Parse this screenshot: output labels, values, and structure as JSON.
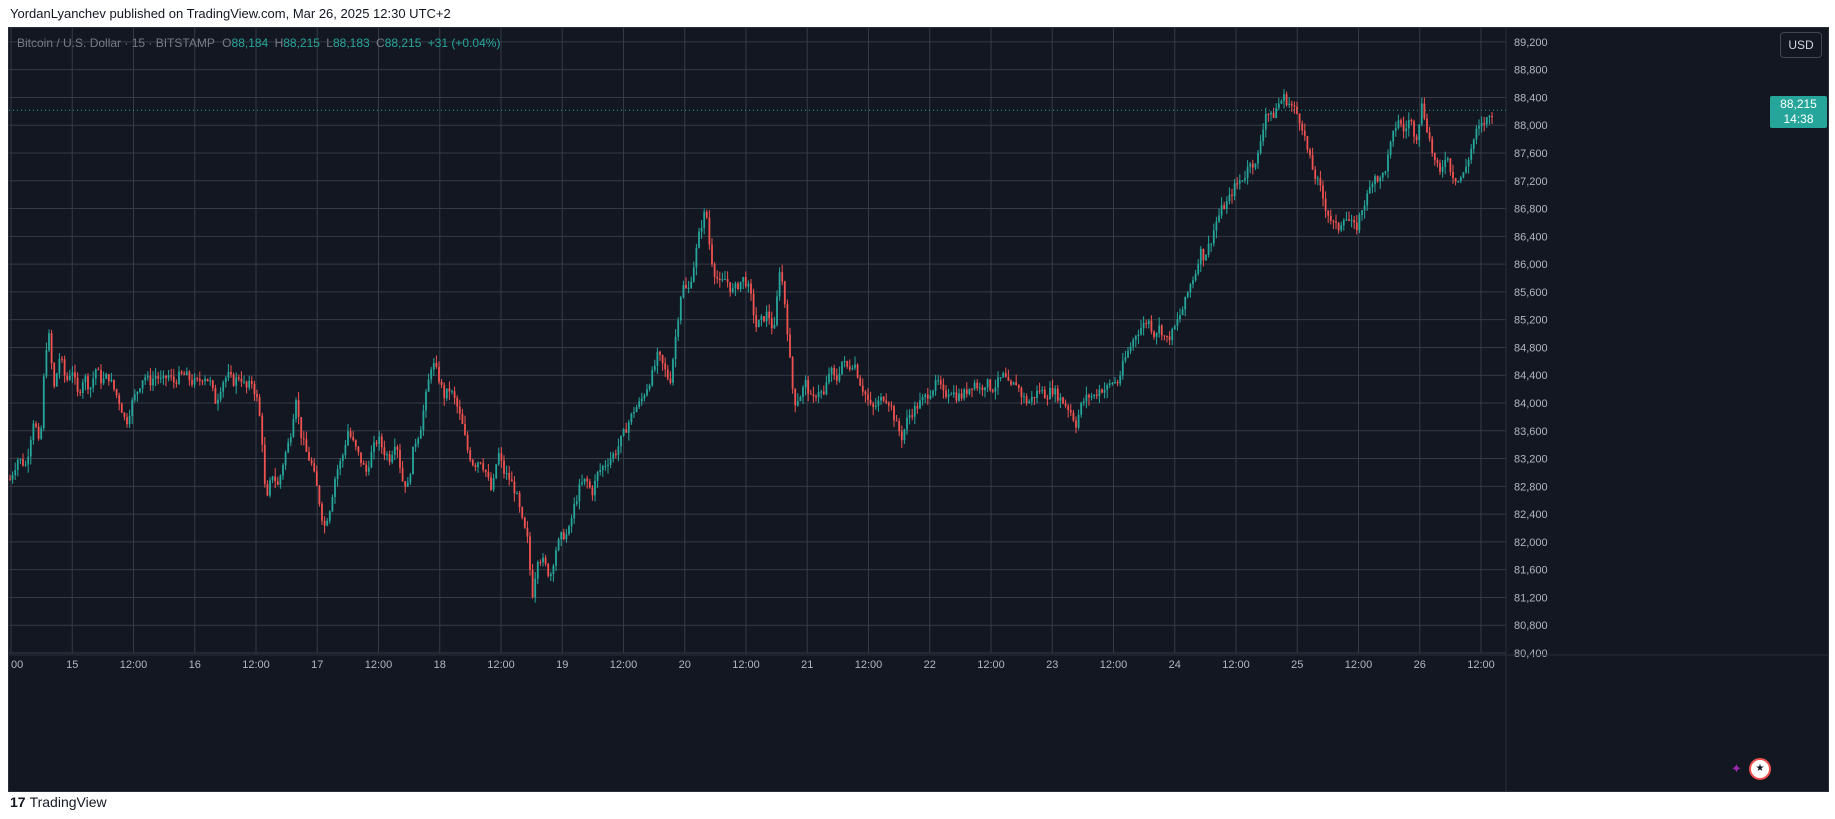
{
  "header": {
    "publish_line": "YordanLyanchev published on TradingView.com, Mar 26, 2025 12:30 UTC+2"
  },
  "legend": {
    "title": "Bitcoin / U.S. Dollar · 15 · BITSTAMP",
    "open_label": "O",
    "open": "88,184",
    "high_label": "H",
    "high": "88,215",
    "low_label": "L",
    "low": "88,183",
    "close_label": "C",
    "close": "88,215",
    "change": "+31 (+0.04%)"
  },
  "price_scale": {
    "currency_button": "USD",
    "last_price": "88,215",
    "countdown": "14:38"
  },
  "footer": {
    "brand": "TradingView",
    "logo_glyph": "17"
  },
  "icons": {
    "flag": "us-flag-icon",
    "event": "event-icon"
  },
  "colors": {
    "background": "#131722",
    "up": "#26a69a",
    "down": "#ef5350",
    "grid": "#363a45",
    "text": "#d1d4dc"
  },
  "chart_data": {
    "type": "candlestick",
    "title": "Bitcoin / U.S. Dollar · 15 · BITSTAMP",
    "ylim": [
      80400,
      89400
    ],
    "y_ticks": [
      "89,200",
      "88,800",
      "88,400",
      "88,000",
      "87,600",
      "87,200",
      "86,800",
      "86,400",
      "86,000",
      "85,600",
      "85,200",
      "84,800",
      "84,400",
      "84,000",
      "83,600",
      "83,200",
      "82,800",
      "82,400",
      "82,000",
      "81,600",
      "81,200",
      "80,800",
      "80,400"
    ],
    "x_tick_labels": [
      "00",
      "15",
      "12:00",
      "16",
      "12:00",
      "17",
      "12:00",
      "18",
      "12:00",
      "19",
      "12:00",
      "20",
      "12:00",
      "21",
      "12:00",
      "22",
      "12:00",
      "23",
      "12:00",
      "24",
      "12:00",
      "25",
      "12:00",
      "26",
      "12:00"
    ],
    "last_price": 88215,
    "grid": true,
    "price_path": [
      [
        0,
        82900
      ],
      [
        8,
        83200
      ],
      [
        16,
        83100
      ],
      [
        24,
        83800
      ],
      [
        30,
        83300
      ],
      [
        34,
        84400
      ],
      [
        38,
        85100
      ],
      [
        44,
        84200
      ],
      [
        50,
        84700
      ],
      [
        56,
        84300
      ],
      [
        62,
        84500
      ],
      [
        68,
        84100
      ],
      [
        74,
        84400
      ],
      [
        80,
        84200
      ],
      [
        86,
        84500
      ],
      [
        92,
        84300
      ],
      [
        98,
        84400
      ],
      [
        104,
        84200
      ],
      [
        110,
        84000
      ],
      [
        116,
        83700
      ],
      [
        122,
        84000
      ],
      [
        128,
        84200
      ],
      [
        134,
        84400
      ],
      [
        140,
        84300
      ],
      [
        146,
        84400
      ],
      [
        152,
        84300
      ],
      [
        158,
        84400
      ],
      [
        164,
        84300
      ],
      [
        170,
        84400
      ],
      [
        176,
        84400
      ],
      [
        182,
        84300
      ],
      [
        188,
        84300
      ],
      [
        194,
        84400
      ],
      [
        200,
        84300
      ],
      [
        206,
        84000
      ],
      [
        212,
        84300
      ],
      [
        218,
        84400
      ],
      [
        224,
        84300
      ],
      [
        230,
        84400
      ],
      [
        236,
        84200
      ],
      [
        242,
        84300
      ],
      [
        248,
        84000
      ],
      [
        252,
        83500
      ],
      [
        256,
        82500
      ],
      [
        262,
        83000
      ],
      [
        268,
        82800
      ],
      [
        274,
        83200
      ],
      [
        280,
        83500
      ],
      [
        286,
        84100
      ],
      [
        290,
        83600
      ],
      [
        296,
        83300
      ],
      [
        302,
        83100
      ],
      [
        308,
        82700
      ],
      [
        314,
        82200
      ],
      [
        320,
        82500
      ],
      [
        326,
        83000
      ],
      [
        332,
        83200
      ],
      [
        338,
        83600
      ],
      [
        344,
        83400
      ],
      [
        350,
        83200
      ],
      [
        356,
        83000
      ],
      [
        362,
        83300
      ],
      [
        368,
        83500
      ],
      [
        374,
        83300
      ],
      [
        380,
        83200
      ],
      [
        386,
        83500
      ],
      [
        392,
        82900
      ],
      [
        398,
        82800
      ],
      [
        404,
        83400
      ],
      [
        410,
        83600
      ],
      [
        416,
        84100
      ],
      [
        422,
        84600
      ],
      [
        428,
        84400
      ],
      [
        434,
        84100
      ],
      [
        440,
        84200
      ],
      [
        446,
        84000
      ],
      [
        452,
        83700
      ],
      [
        458,
        83300
      ],
      [
        464,
        83100
      ],
      [
        470,
        83200
      ],
      [
        476,
        83000
      ],
      [
        482,
        82700
      ],
      [
        488,
        83300
      ],
      [
        494,
        83000
      ],
      [
        500,
        82900
      ],
      [
        506,
        82700
      ],
      [
        512,
        82300
      ],
      [
        518,
        82000
      ],
      [
        522,
        81200
      ],
      [
        528,
        81800
      ],
      [
        534,
        81700
      ],
      [
        540,
        81500
      ],
      [
        546,
        81900
      ],
      [
        552,
        82100
      ],
      [
        558,
        82100
      ],
      [
        564,
        82500
      ],
      [
        570,
        82800
      ],
      [
        576,
        82900
      ],
      [
        582,
        82700
      ],
      [
        588,
        83000
      ],
      [
        594,
        83100
      ],
      [
        600,
        83200
      ],
      [
        606,
        83300
      ],
      [
        612,
        83500
      ],
      [
        618,
        83700
      ],
      [
        624,
        83900
      ],
      [
        630,
        84000
      ],
      [
        636,
        84200
      ],
      [
        642,
        84400
      ],
      [
        648,
        84700
      ],
      [
        654,
        84500
      ],
      [
        660,
        84300
      ],
      [
        666,
        85000
      ],
      [
        672,
        85700
      ],
      [
        678,
        85600
      ],
      [
        684,
        86000
      ],
      [
        690,
        86500
      ],
      [
        696,
        86800
      ],
      [
        700,
        86200
      ],
      [
        704,
        85900
      ],
      [
        710,
        85700
      ],
      [
        716,
        85800
      ],
      [
        722,
        85600
      ],
      [
        728,
        85700
      ],
      [
        734,
        85800
      ],
      [
        740,
        85600
      ],
      [
        746,
        85100
      ],
      [
        752,
        85200
      ],
      [
        758,
        85300
      ],
      [
        764,
        85000
      ],
      [
        770,
        86000
      ],
      [
        776,
        85300
      ],
      [
        780,
        84600
      ],
      [
        784,
        84000
      ],
      [
        790,
        84100
      ],
      [
        796,
        84300
      ],
      [
        802,
        84000
      ],
      [
        808,
        84200
      ],
      [
        814,
        84100
      ],
      [
        820,
        84500
      ],
      [
        826,
        84300
      ],
      [
        832,
        84600
      ],
      [
        838,
        84500
      ],
      [
        844,
        84600
      ],
      [
        850,
        84300
      ],
      [
        856,
        84100
      ],
      [
        862,
        83900
      ],
      [
        868,
        84000
      ],
      [
        874,
        84100
      ],
      [
        880,
        84000
      ],
      [
        886,
        83700
      ],
      [
        892,
        83500
      ],
      [
        898,
        83800
      ],
      [
        904,
        83900
      ],
      [
        910,
        84000
      ],
      [
        916,
        84100
      ],
      [
        922,
        84200
      ],
      [
        928,
        84300
      ],
      [
        934,
        84100
      ],
      [
        940,
        84200
      ],
      [
        946,
        84100
      ],
      [
        952,
        84100
      ],
      [
        958,
        84200
      ],
      [
        964,
        84300
      ],
      [
        970,
        84200
      ],
      [
        976,
        84300
      ],
      [
        982,
        84200
      ],
      [
        988,
        84300
      ],
      [
        994,
        84400
      ],
      [
        1000,
        84200
      ],
      [
        1006,
        84300
      ],
      [
        1012,
        84100
      ],
      [
        1018,
        84000
      ],
      [
        1024,
        84100
      ],
      [
        1030,
        84200
      ],
      [
        1036,
        84100
      ],
      [
        1042,
        84200
      ],
      [
        1048,
        84100
      ],
      [
        1054,
        84000
      ],
      [
        1060,
        83900
      ],
      [
        1066,
        83700
      ],
      [
        1072,
        84000
      ],
      [
        1078,
        84100
      ],
      [
        1084,
        84100
      ],
      [
        1090,
        84200
      ],
      [
        1096,
        84200
      ],
      [
        1102,
        84300
      ],
      [
        1108,
        84300
      ],
      [
        1114,
        84600
      ],
      [
        1120,
        84800
      ],
      [
        1126,
        85000
      ],
      [
        1132,
        85100
      ],
      [
        1138,
        85200
      ],
      [
        1144,
        85000
      ],
      [
        1150,
        85100
      ],
      [
        1156,
        84900
      ],
      [
        1162,
        85000
      ],
      [
        1168,
        85200
      ],
      [
        1174,
        85400
      ],
      [
        1180,
        85700
      ],
      [
        1186,
        85900
      ],
      [
        1190,
        86200
      ],
      [
        1194,
        86100
      ],
      [
        1200,
        86300
      ],
      [
        1206,
        86600
      ],
      [
        1212,
        86800
      ],
      [
        1218,
        86900
      ],
      [
        1224,
        87100
      ],
      [
        1230,
        87200
      ],
      [
        1236,
        87300
      ],
      [
        1240,
        87500
      ],
      [
        1246,
        87400
      ],
      [
        1252,
        87900
      ],
      [
        1256,
        88200
      ],
      [
        1262,
        88100
      ],
      [
        1268,
        88300
      ],
      [
        1274,
        88400
      ],
      [
        1280,
        88300
      ],
      [
        1286,
        88200
      ],
      [
        1292,
        88000
      ],
      [
        1298,
        87600
      ],
      [
        1304,
        87300
      ],
      [
        1310,
        87100
      ],
      [
        1316,
        86800
      ],
      [
        1322,
        86600
      ],
      [
        1328,
        86500
      ],
      [
        1334,
        86700
      ],
      [
        1340,
        86600
      ],
      [
        1346,
        86500
      ],
      [
        1352,
        86800
      ],
      [
        1358,
        87000
      ],
      [
        1364,
        87300
      ],
      [
        1370,
        87200
      ],
      [
        1376,
        87400
      ],
      [
        1382,
        87800
      ],
      [
        1388,
        88100
      ],
      [
        1394,
        87900
      ],
      [
        1400,
        88100
      ],
      [
        1406,
        87800
      ],
      [
        1412,
        88300
      ],
      [
        1418,
        87900
      ],
      [
        1424,
        87500
      ],
      [
        1430,
        87300
      ],
      [
        1436,
        87600
      ],
      [
        1442,
        87300
      ],
      [
        1448,
        87200
      ],
      [
        1454,
        87300
      ],
      [
        1460,
        87600
      ],
      [
        1466,
        87900
      ],
      [
        1472,
        88000
      ],
      [
        1478,
        88100
      ],
      [
        1484,
        88215
      ]
    ]
  }
}
